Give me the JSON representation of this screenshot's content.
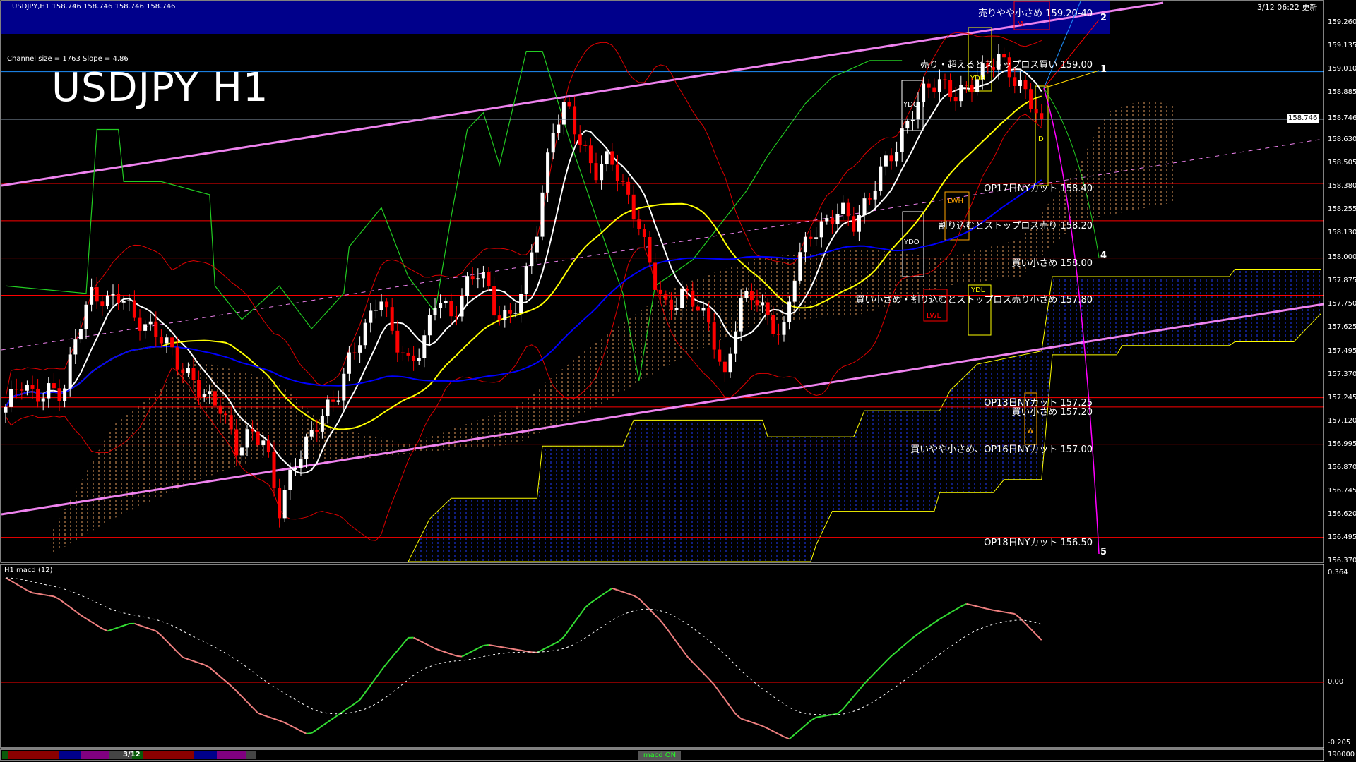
{
  "header": {
    "symbol_line": "USDJPY,H1  158.746 158.746 158.746 158.746",
    "channel_info": "Channel size = 1763 Slope = 4.86",
    "big_title": "USDJPY H1",
    "timestamp": "3/12 06:22 更新"
  },
  "colors": {
    "background": "#000000",
    "bull_candle": "#ffffff",
    "bear_candle": "#ff0000",
    "level_line": "#ff0000",
    "channel": "#ee82ee",
    "cloud_future": "#0000cc",
    "cloud_edge": "#ffff00",
    "ma_fast": "#ffffff",
    "ma_mid": "#ffff00",
    "ma_slow": "#0000ff",
    "chikou": "#22cc22",
    "macd_up": "#33dd33",
    "macd_down": "#f08080"
  },
  "chart_data": [
    {
      "type": "candlestick",
      "title": "USDJPY H1",
      "current_price": 158.746,
      "ylim": [
        156.37,
        159.385
      ],
      "y_ticks": [
        "159.260",
        "159.135",
        "159.010",
        "158.885",
        "158.746",
        "158.630",
        "158.505",
        "158.380",
        "158.255",
        "158.130",
        "158.000",
        "157.875",
        "157.750",
        "157.625",
        "157.495",
        "157.370",
        "157.245",
        "157.120",
        "156.995",
        "156.870",
        "156.745",
        "156.620",
        "156.495",
        "156.370"
      ],
      "close_path": [
        157.2,
        157.34,
        157.25,
        157.29,
        157.27,
        157.62,
        157.81,
        157.76,
        157.81,
        157.67,
        157.62,
        157.57,
        157.43,
        157.34,
        157.25,
        157.2,
        156.97,
        157.06,
        157.02,
        156.64,
        156.88,
        157.02,
        157.16,
        157.25,
        157.48,
        157.62,
        157.81,
        157.57,
        157.43,
        157.53,
        157.81,
        157.67,
        157.85,
        157.95,
        157.71,
        157.67,
        157.85,
        158.18,
        158.69,
        158.83,
        158.6,
        158.46,
        158.55,
        158.36,
        158.18,
        157.9,
        157.71,
        157.81,
        157.76,
        157.62,
        157.34,
        157.76,
        157.81,
        157.67,
        157.57,
        157.99,
        158.13,
        158.18,
        158.27,
        158.18,
        158.32,
        158.5,
        158.6,
        158.78,
        158.92,
        158.94,
        158.87,
        158.92,
        159.01,
        159.08,
        158.97,
        158.87,
        158.746
      ],
      "price_levels": [
        {
          "price": 159.0,
          "label": "売り・超えるとストップロス買い 159.00",
          "color": "#1e90ff",
          "pos": "above",
          "num": "1"
        },
        {
          "price": 158.4,
          "label": "OP17日NYカット 158.40",
          "color": "#ff0000",
          "pos": "below"
        },
        {
          "price": 158.2,
          "label": "割り込むとストップロス売り 158.20",
          "color": "#ff0000",
          "pos": "below"
        },
        {
          "price": 158.0,
          "label": "買い小さめ 158.00",
          "color": "#ff0000",
          "pos": "below",
          "num": "4"
        },
        {
          "price": 157.8,
          "label": "買い小さめ・割り込むとストップロス売り小さめ 157.80",
          "color": "#ff0000",
          "pos": "below"
        },
        {
          "price": 157.25,
          "label": "OP13日NYカット 157.25",
          "color": "#ff0000",
          "pos": "below"
        },
        {
          "price": 157.2,
          "label": "買い小さめ 157.20",
          "color": "#ff0000",
          "pos": "below"
        },
        {
          "price": 157.0,
          "label": "買いやや小さめ、OP16日NYカット 157.00",
          "color": "#ff0000",
          "pos": "below"
        },
        {
          "price": 156.5,
          "label": "OP18日NYカット 156.50",
          "color": "#ff0000",
          "pos": "below",
          "num": "5"
        }
      ],
      "top_level": {
        "label": "売りやや小さめ 159.20-40",
        "num": "2"
      },
      "cloud_future": {
        "upper": [
          [
            75,
            156.37
          ],
          [
            79,
            156.6
          ],
          [
            83,
            156.71
          ],
          [
            99,
            156.71
          ],
          [
            100,
            156.99
          ],
          [
            115,
            156.99
          ],
          [
            117,
            157.13
          ],
          [
            141,
            157.13
          ],
          [
            142,
            157.04
          ],
          [
            158,
            157.04
          ],
          [
            160,
            157.18
          ],
          [
            174,
            157.18
          ],
          [
            176,
            157.29
          ],
          [
            181,
            157.43
          ],
          [
            193,
            157.5
          ],
          [
            195,
            157.9
          ],
          [
            228,
            157.9
          ],
          [
            229,
            157.94
          ],
          [
            245,
            157.94
          ]
        ],
        "lower": [
          [
            75,
            156.37
          ],
          [
            150,
            156.37
          ],
          [
            151,
            156.46
          ],
          [
            154,
            156.64
          ],
          [
            173,
            156.64
          ],
          [
            174,
            156.74
          ],
          [
            184,
            156.74
          ],
          [
            186,
            156.81
          ],
          [
            193,
            156.81
          ],
          [
            195,
            157.48
          ],
          [
            207,
            157.48
          ],
          [
            208,
            157.53
          ],
          [
            228,
            157.53
          ],
          [
            229,
            157.55
          ],
          [
            240,
            157.55
          ],
          [
            245,
            157.7
          ]
        ]
      },
      "cloud_past": {
        "upper": [
          [
            8,
            156.5
          ],
          [
            20,
            157.1
          ],
          [
            35,
            157.45
          ],
          [
            50,
            157.35
          ],
          [
            60,
            157.1
          ],
          [
            75,
            157.0
          ],
          [
            95,
            157.2
          ],
          [
            110,
            157.55
          ],
          [
            125,
            157.85
          ],
          [
            140,
            158.0
          ],
          [
            160,
            158.05
          ],
          [
            175,
            158.0
          ],
          [
            189,
            158.1
          ],
          [
            200,
            158.5
          ],
          [
            205,
            158.78
          ],
          [
            212,
            158.85
          ],
          [
            218,
            158.82
          ]
        ],
        "lower": [
          [
            8,
            156.4
          ],
          [
            20,
            156.6
          ],
          [
            35,
            156.8
          ],
          [
            50,
            156.95
          ],
          [
            60,
            156.9
          ],
          [
            75,
            156.95
          ],
          [
            95,
            157.0
          ],
          [
            110,
            157.2
          ],
          [
            125,
            157.45
          ],
          [
            140,
            157.65
          ],
          [
            160,
            157.7
          ],
          [
            175,
            157.85
          ],
          [
            189,
            157.9
          ],
          [
            200,
            158.2
          ],
          [
            218,
            158.3
          ]
        ]
      },
      "chikou": [
        [
          0,
          157.85
        ],
        [
          15,
          157.81
        ],
        [
          17,
          158.69
        ],
        [
          21,
          158.69
        ],
        [
          22,
          158.41
        ],
        [
          29,
          158.41
        ],
        [
          38,
          158.34
        ],
        [
          39,
          157.85
        ],
        [
          44,
          157.67
        ],
        [
          51,
          157.85
        ],
        [
          57,
          157.62
        ],
        [
          63,
          157.81
        ],
        [
          64,
          158.06
        ],
        [
          70,
          158.27
        ],
        [
          75,
          157.9
        ],
        [
          80,
          157.71
        ],
        [
          83,
          158.22
        ],
        [
          86,
          158.69
        ],
        [
          89,
          158.78
        ],
        [
          92,
          158.5
        ],
        [
          97,
          159.11
        ],
        [
          100,
          159.11
        ],
        [
          105,
          158.64
        ],
        [
          110,
          158.22
        ],
        [
          115,
          157.81
        ],
        [
          118,
          157.34
        ],
        [
          121,
          157.85
        ],
        [
          128,
          157.99
        ],
        [
          138,
          158.36
        ],
        [
          142,
          158.55
        ],
        [
          149,
          158.83
        ],
        [
          154,
          158.97
        ],
        [
          161,
          159.06
        ],
        [
          167,
          159.06
        ]
      ],
      "boxes": [
        {
          "label": "YDC",
          "color": "#ffffff"
        },
        {
          "label": "YDH",
          "color": "#ffff00"
        },
        {
          "label": "YDO",
          "color": "#ffffff"
        },
        {
          "label": "LWH",
          "color": "#ffa500"
        },
        {
          "label": "YDL",
          "color": "#ffff00"
        },
        {
          "label": "LWL",
          "color": "#ff0000"
        },
        {
          "label": "D",
          "color": "#ffff00"
        },
        {
          "label": "W",
          "color": "#ffa500"
        },
        {
          "label": "M",
          "color": "#ff0000"
        }
      ]
    },
    {
      "type": "line",
      "title": "H1  macd (12)",
      "ylim": [
        -0.205,
        0.364
      ],
      "y_ticks": [
        "0.364",
        "0.00",
        "-0.205"
      ],
      "macd_path": [
        0.339,
        0.291,
        0.277,
        0.216,
        0.165,
        0.193,
        0.165,
        0.081,
        0.053,
        -0.017,
        -0.101,
        -0.129,
        -0.171,
        -0.115,
        -0.059,
        0.053,
        0.151,
        0.109,
        0.081,
        0.123,
        0.109,
        0.095,
        0.137,
        0.249,
        0.305,
        0.277,
        0.193,
        0.081,
        -0.003,
        -0.115,
        -0.143,
        -0.185,
        -0.115,
        -0.101,
        -0.003,
        0.081,
        0.151,
        0.207,
        0.255,
        0.235,
        0.221,
        0.137
      ]
    }
  ],
  "bottom_bar": {
    "date_label": "3/12",
    "indicator_toggle": "macd ON",
    "volume_axis": "190000"
  }
}
